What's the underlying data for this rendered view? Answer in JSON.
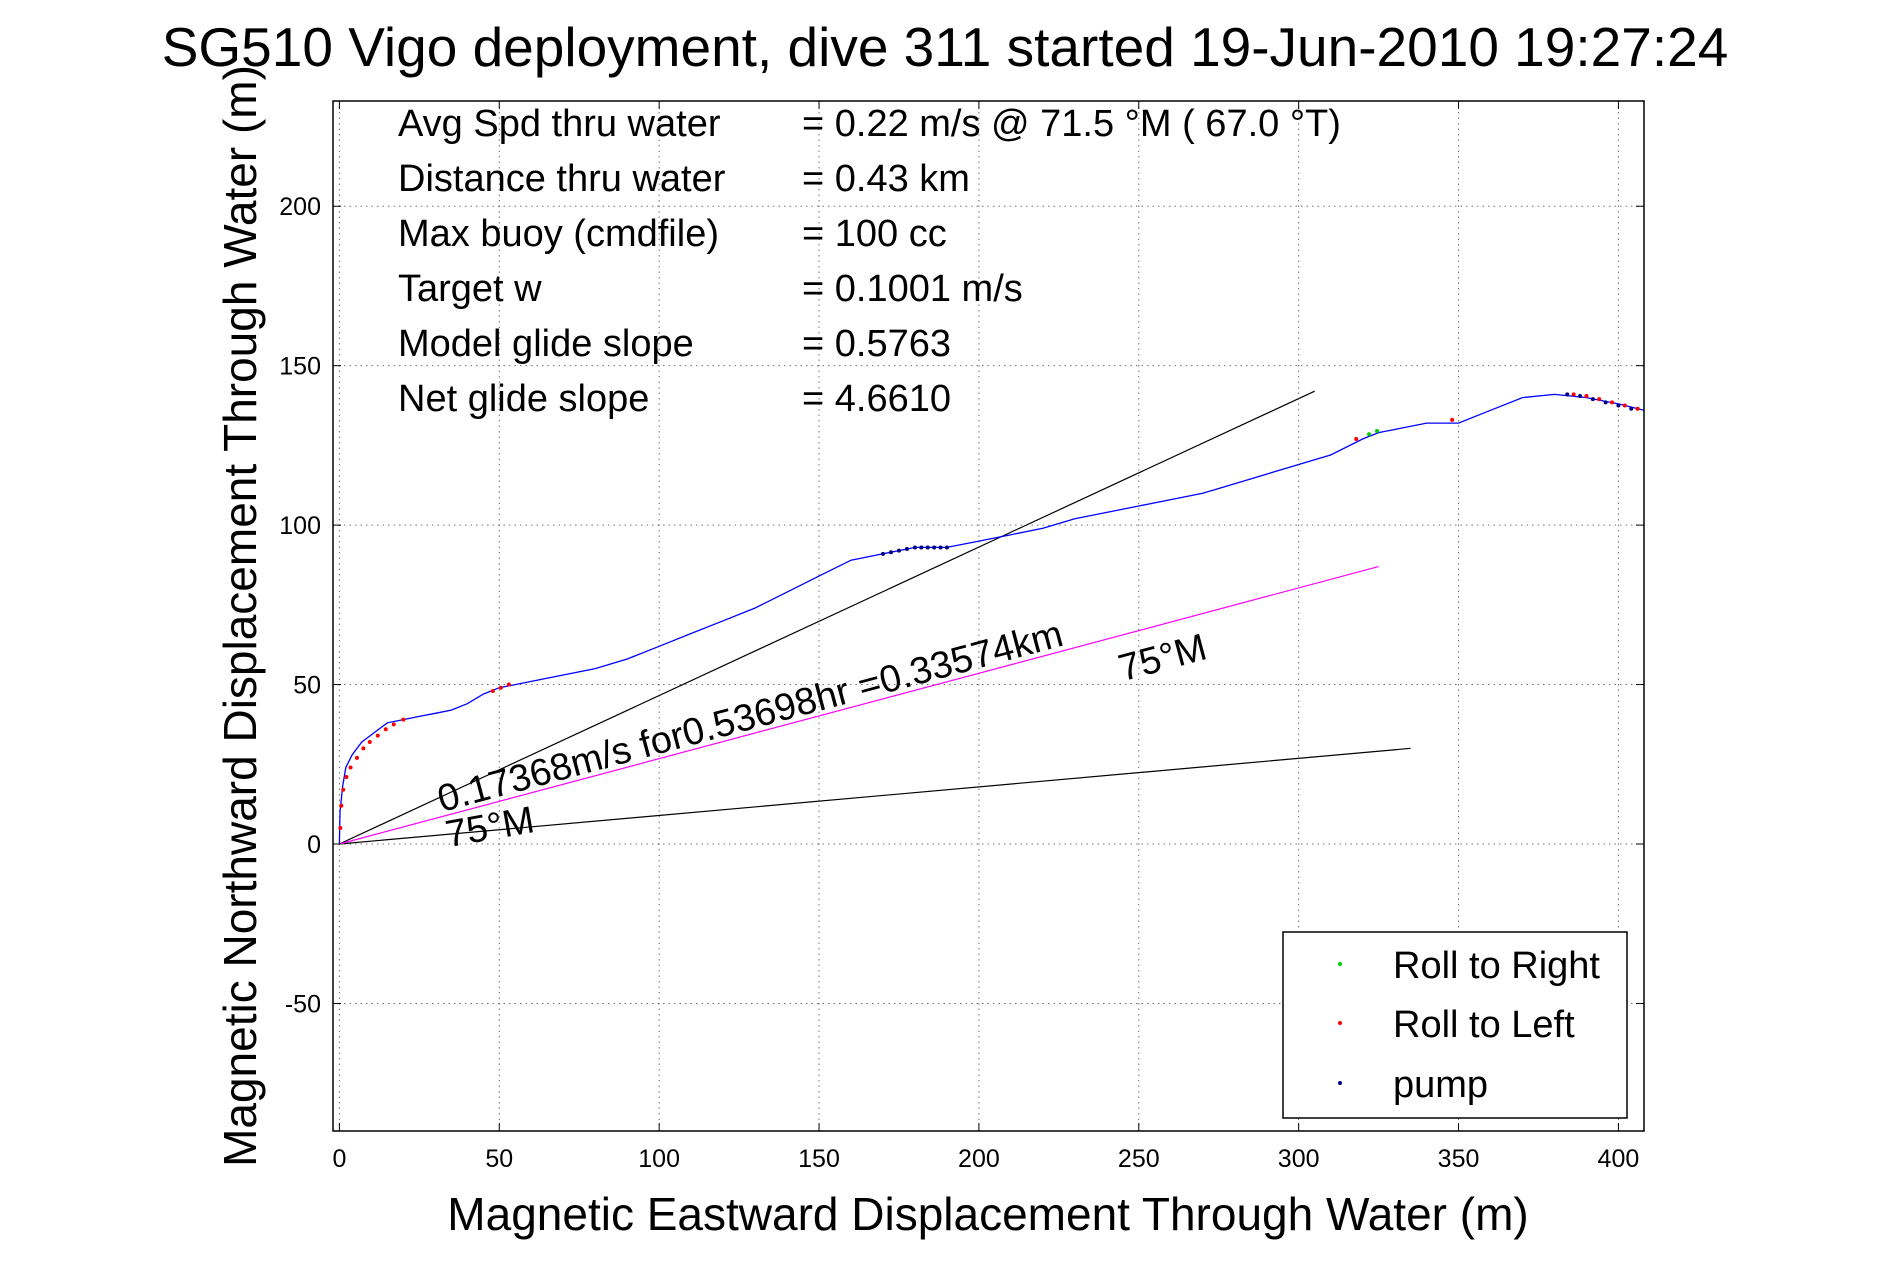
{
  "chart_data": {
    "type": "line",
    "title": "SG510 Vigo deployment, dive 311 started 19-Jun-2010 19:27:24",
    "xlabel": "Magnetic Eastward Displacement Through Water (m)",
    "ylabel": "Magnetic Northward Displacement Through Water (m)",
    "xlim": [
      -2,
      408
    ],
    "ylim": [
      -90,
      233
    ],
    "xticks": [
      "0",
      "50",
      "100",
      "150",
      "200",
      "250",
      "300",
      "350",
      "400"
    ],
    "yticks": [
      "-50",
      "0",
      "50",
      "100",
      "150",
      "200"
    ],
    "xtick_values": [
      0,
      50,
      100,
      150,
      200,
      250,
      300,
      350,
      400
    ],
    "ytick_values": [
      -50,
      0,
      50,
      100,
      150,
      200
    ],
    "grid": true,
    "info_lines": [
      {
        "label": "Avg Spd thru water",
        "value": "=  0.22 m/s @  71.5 °M ( 67.0 °T)"
      },
      {
        "label": "Distance thru water",
        "value": "=  0.43 km"
      },
      {
        "label": "Max buoy (cmdfile)",
        "value": "= 100 cc"
      },
      {
        "label": "Target w",
        "value": "= 0.1001 m/s"
      },
      {
        "label": "Model glide slope",
        "value": "= 0.5763"
      },
      {
        "label": "Net glide slope",
        "value": "= 4.6610"
      }
    ],
    "track": {
      "name": "track",
      "color": "#0000ff",
      "x": [
        0,
        0.2,
        1,
        2,
        4,
        7,
        11,
        15,
        20,
        25,
        30,
        35,
        40,
        45,
        50,
        55,
        60,
        70,
        80,
        90,
        100,
        110,
        120,
        130,
        140,
        150,
        160,
        170,
        175,
        180,
        185,
        190,
        200,
        210,
        220,
        230,
        240,
        250,
        260,
        270,
        280,
        290,
        300,
        310,
        320,
        325,
        330,
        340,
        350,
        360,
        370,
        380,
        390,
        400,
        408
      ],
      "y": [
        0,
        10,
        18,
        24,
        28,
        32,
        35,
        38,
        39,
        40,
        41,
        42,
        44,
        47,
        49,
        50,
        51,
        53,
        55,
        58,
        62,
        66,
        70,
        74,
        79,
        84,
        89,
        91,
        92,
        93,
        93,
        93,
        95,
        97,
        99,
        102,
        104,
        106,
        108,
        110,
        113,
        116,
        119,
        122,
        127,
        129,
        130,
        132,
        132,
        136,
        140,
        141,
        140,
        138,
        136
      ]
    },
    "reference_lines": [
      {
        "name": "model-glide-line-upper",
        "color": "#000000",
        "x": [
          0,
          305
        ],
        "y": [
          0,
          142
        ]
      },
      {
        "name": "model-glide-line-lower",
        "color": "#000000",
        "x": [
          0,
          335
        ],
        "y": [
          0,
          30
        ]
      },
      {
        "name": "current-vector-line",
        "color": "#ff00ff",
        "x": [
          0,
          325
        ],
        "y": [
          0,
          87
        ]
      }
    ],
    "events": {
      "roll_right": {
        "name": "Roll to Right",
        "color": "#00cc00",
        "x": [
          322,
          324.5
        ],
        "y": [
          128.5,
          129.5
        ]
      },
      "roll_left": {
        "name": "Roll to Left",
        "color": "#ff0000",
        "x": [
          0.3,
          0.6,
          1.2,
          2.2,
          3.5,
          5.5,
          7.5,
          9.5,
          12,
          14.5,
          17,
          20,
          48,
          50.5,
          53,
          318,
          348,
          386,
          390,
          394,
          398,
          402,
          406
        ],
        "y": [
          5,
          12,
          17,
          21,
          24,
          27,
          30,
          32,
          34,
          36,
          37.5,
          39,
          48,
          49,
          50,
          127,
          133,
          141,
          140.5,
          139.5,
          138.5,
          137.5,
          136.5
        ]
      },
      "pump": {
        "name": "pump",
        "color": "#000080",
        "x": [
          170,
          172.5,
          175,
          177.5,
          180,
          182,
          184,
          186,
          188,
          190,
          384,
          388,
          392,
          396,
          400,
          404
        ],
        "y": [
          91,
          91.5,
          92,
          92.5,
          93,
          93,
          93,
          93,
          93,
          93,
          141,
          140.5,
          139.5,
          138.5,
          137.5,
          136.5
        ]
      }
    },
    "annotations": [
      {
        "name": "speed-annotation",
        "text": "0.17368m/s for0.53698hr =0.33574km",
        "x": 32,
        "y": 10,
        "angle_deg": -15
      },
      {
        "name": "heading-label-upper",
        "text": "75°M",
        "x": 245,
        "y": 51,
        "angle_deg": -15
      },
      {
        "name": "heading-label-lower",
        "text": "75°M",
        "x": 34,
        "y": -1,
        "angle_deg": -10
      }
    ],
    "legend": {
      "placement": "bottom-right",
      "entries": [
        {
          "label": "Roll to Right",
          "color": "#00cc00"
        },
        {
          "label": "Roll to Left",
          "color": "#ff0000"
        },
        {
          "label": "pump",
          "color": "#000080"
        }
      ]
    }
  }
}
